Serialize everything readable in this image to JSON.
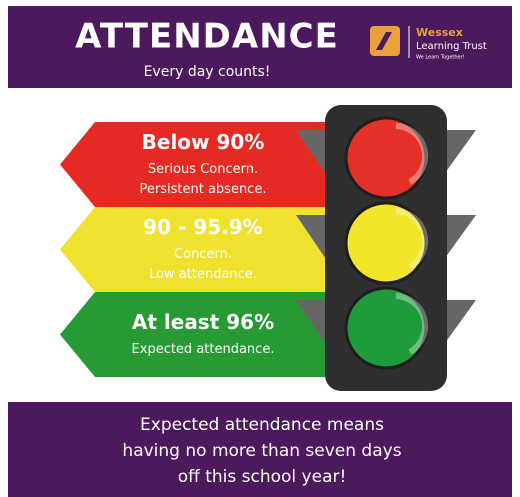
{
  "header": {
    "title": "ATTENDANCE",
    "subtitle": "Every day counts!"
  },
  "logo": {
    "name": "Wessex",
    "org": "Learning Trust",
    "tagline": "We Learn Together!"
  },
  "levels": [
    {
      "title": "Below 90%",
      "lines": [
        "Serious Concern.",
        "Persistent absence."
      ]
    },
    {
      "title": "90 - 95.9%",
      "lines": [
        "Concern.",
        "Low attendance."
      ]
    },
    {
      "title": "At least 96%",
      "lines": [
        "Expected attendance."
      ]
    }
  ],
  "footer": {
    "lines": [
      "Expected attendance means",
      "having no more than seven days",
      "off this school year!"
    ]
  }
}
